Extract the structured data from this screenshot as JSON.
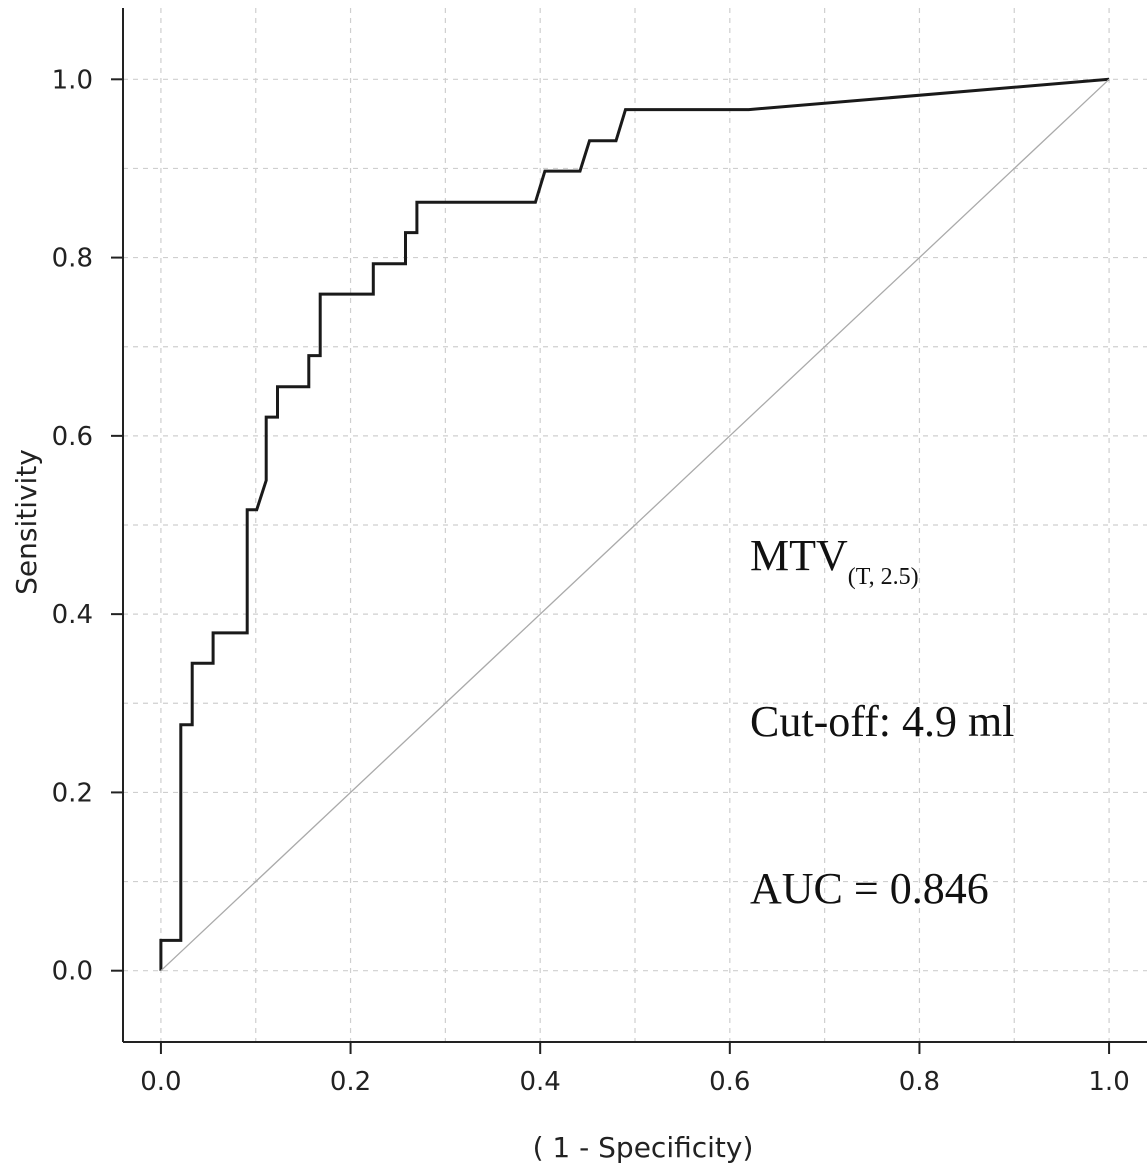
{
  "chart_data": {
    "type": "line",
    "title": "",
    "xlabel": "( 1 - Specificity)",
    "ylabel": "Sensitivity",
    "xlim": [
      -0.04,
      1.04
    ],
    "ylim": [
      -0.08,
      1.08
    ],
    "xticks": [
      0.0,
      0.2,
      0.4,
      0.6,
      0.8,
      1.0
    ],
    "yticks": [
      0.0,
      0.2,
      0.4,
      0.6,
      0.8,
      1.0
    ],
    "xtick_labels": [
      "0.0",
      "0.2",
      "0.4",
      "0.6",
      "0.8",
      "1.0"
    ],
    "ytick_labels": [
      "0.0",
      "0.2",
      "0.4",
      "0.6",
      "0.8",
      "1.0"
    ],
    "grid": true,
    "series": [
      {
        "color": "#1a1a1a",
        "x": [
          0.0,
          0.0,
          0.021,
          0.021,
          0.033,
          0.033,
          0.055,
          0.055,
          0.091,
          0.091,
          0.101,
          0.111,
          0.111,
          0.123,
          0.123,
          0.156,
          0.156,
          0.168,
          0.168,
          0.224,
          0.224,
          0.258,
          0.258,
          0.27,
          0.27,
          0.395,
          0.405,
          0.442,
          0.452,
          0.48,
          0.49,
          0.62,
          1.0
        ],
        "y": [
          0.0,
          0.034,
          0.034,
          0.276,
          0.276,
          0.345,
          0.345,
          0.379,
          0.379,
          0.517,
          0.517,
          0.55,
          0.621,
          0.621,
          0.655,
          0.655,
          0.69,
          0.69,
          0.759,
          0.759,
          0.793,
          0.793,
          0.828,
          0.828,
          0.862,
          0.862,
          0.897,
          0.897,
          0.931,
          0.931,
          0.966,
          0.966,
          1.0
        ]
      },
      {
        "color": "#aaaaaa",
        "x": [
          0.0,
          1.0
        ],
        "y": [
          0.0,
          1.0
        ]
      }
    ],
    "annotations": {
      "label_main": "MTV",
      "label_sub": "(T, 2.5)",
      "cutoff": "Cut-off: 4.9 ml",
      "auc": "AUC = 0.846"
    }
  }
}
